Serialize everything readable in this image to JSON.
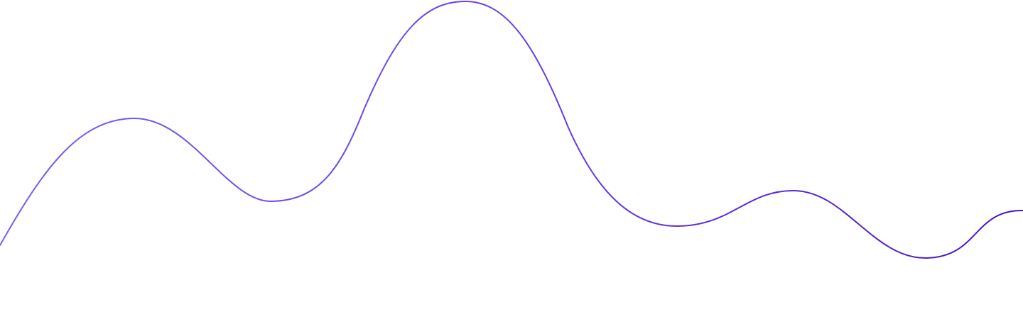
{
  "decoration": {
    "type": "wave-line",
    "colors": {
      "background": "#ffffff",
      "gradient_start": "#7c5cf0",
      "gradient_mid": "#6a3ee6",
      "gradient_end": "#4a12c9"
    }
  }
}
